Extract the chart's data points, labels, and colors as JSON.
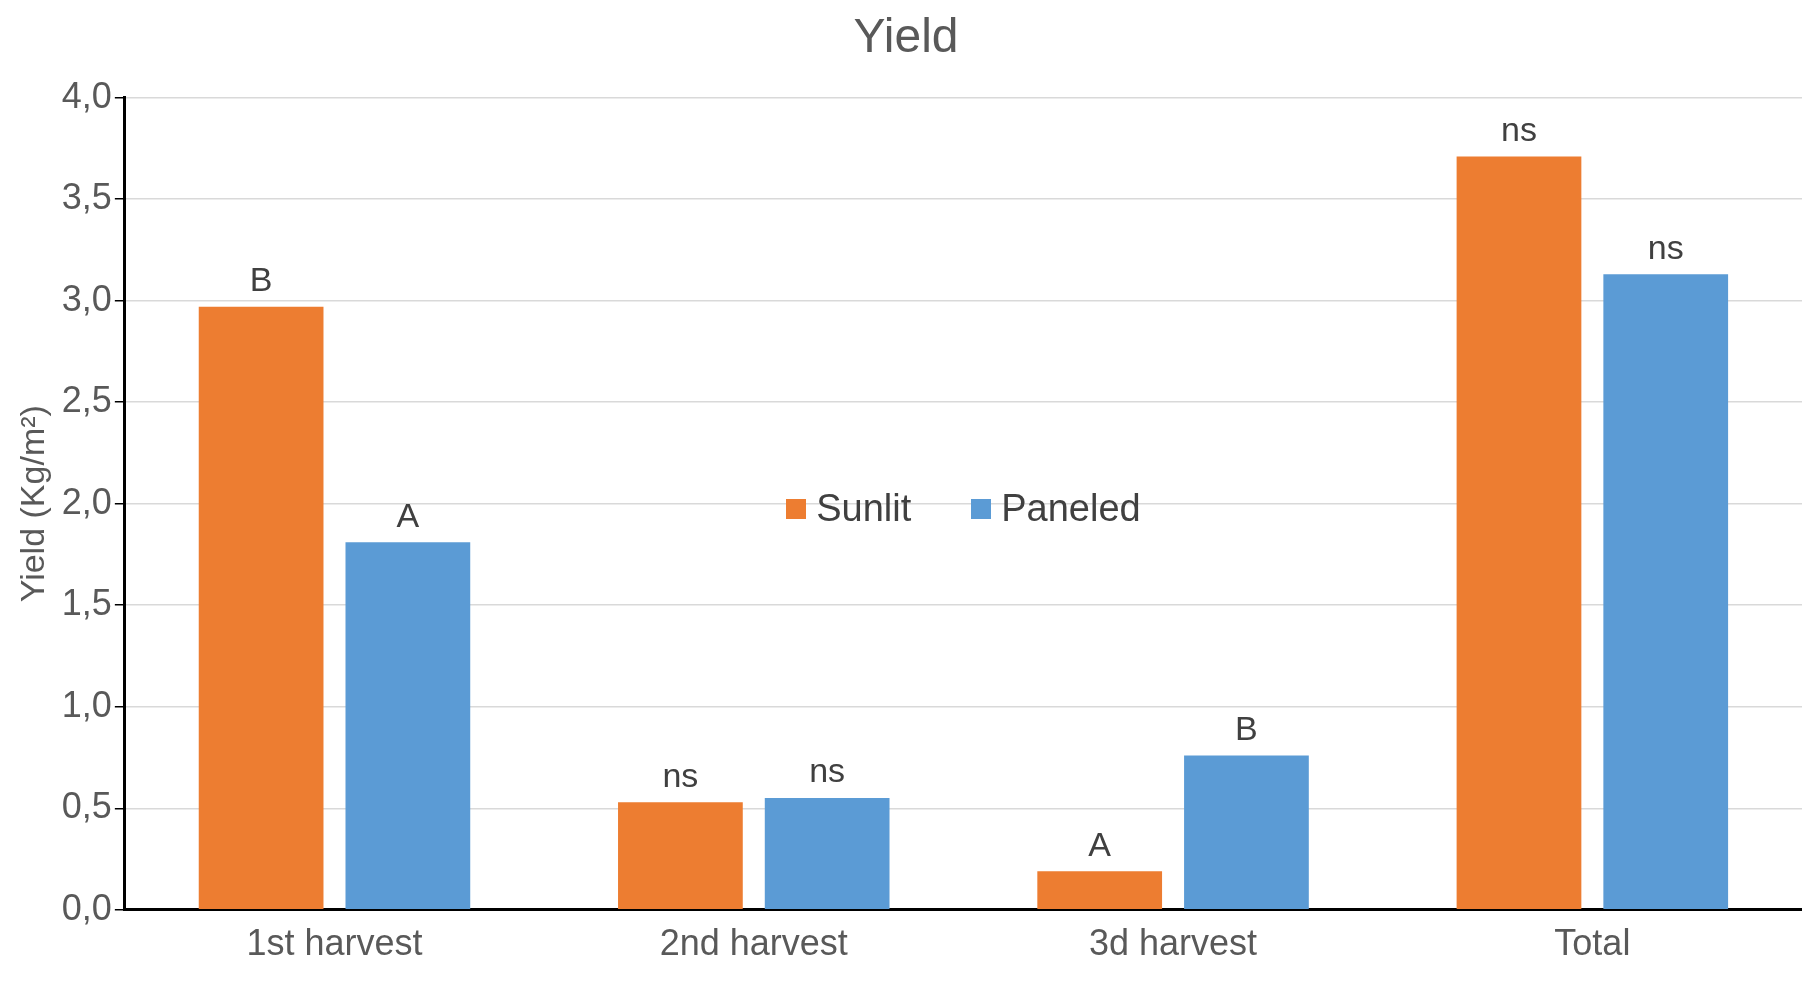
{
  "chart_data": {
    "type": "bar",
    "title": "Yield",
    "ylabel": "Yield (Kg/m²)",
    "categories": [
      "1st harvest",
      "2nd harvest",
      "3d harvest",
      "Total"
    ],
    "series": [
      {
        "name": "Sunlit",
        "color": "#ed7d31",
        "values": [
          2.97,
          0.53,
          0.19,
          3.71
        ]
      },
      {
        "name": "Paneled",
        "color": "#5b9bd5",
        "values": [
          1.81,
          0.55,
          0.76,
          3.13
        ]
      }
    ],
    "ylim": [
      0,
      4
    ],
    "yticks": [
      {
        "value": 0,
        "label": "0,0"
      },
      {
        "value": 0.5,
        "label": "0,5"
      },
      {
        "value": 1,
        "label": "1,0"
      },
      {
        "value": 1.5,
        "label": "1,5"
      },
      {
        "value": 2,
        "label": "2,0"
      },
      {
        "value": 2.5,
        "label": "2,5"
      },
      {
        "value": 3,
        "label": "3,0"
      },
      {
        "value": 3.5,
        "label": "3,5"
      },
      {
        "value": 4,
        "label": "4,0"
      }
    ],
    "grid": "y",
    "legend": "center",
    "annotations": [
      "B",
      "A",
      "ns",
      "ns",
      "A",
      "B",
      "ns",
      "ns"
    ]
  }
}
